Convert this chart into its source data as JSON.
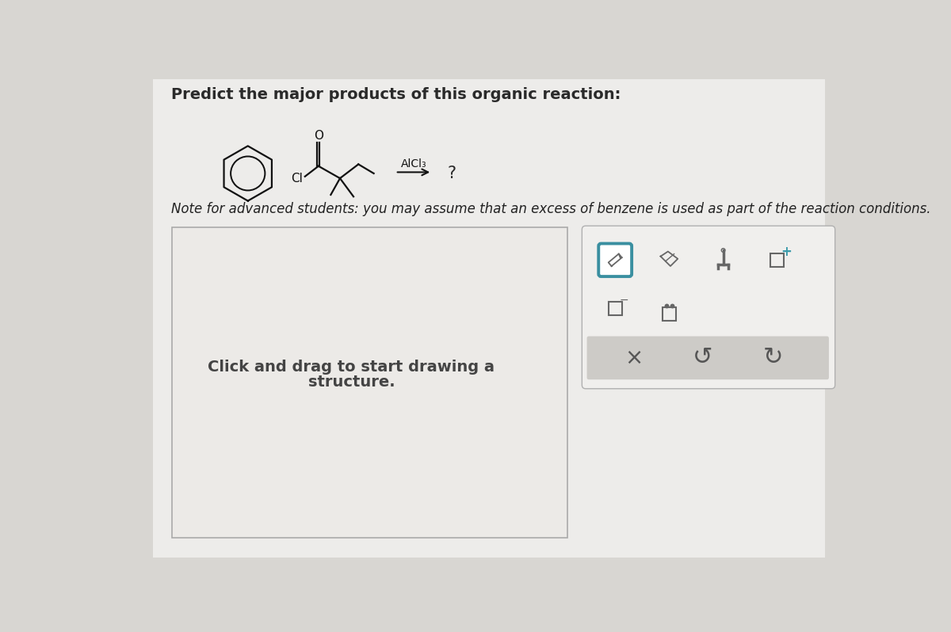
{
  "title": "Predict the major products of this organic reaction:",
  "note": "Note for advanced students: you may assume that an excess of benzene is used as part of the reaction conditions.",
  "reagent": "AlCl₃",
  "question_mark": "?",
  "draw_prompt_line1": "Click and drag to start drawing a",
  "draw_prompt_line2": "structure.",
  "bg_color": "#d8d6d2",
  "paper_color": "#edecea",
  "draw_box_color": "#eceae7",
  "toolbar_bg": "#ebebea",
  "toolbar_border": "#5a9aaa",
  "toolbar_bottom_bg": "#cdcbc7",
  "icon_color": "#555555",
  "text_color": "#2a2a2a",
  "note_color": "#222222",
  "draw_text_color": "#444444",
  "title_fontsize": 14,
  "note_fontsize": 12,
  "draw_prompt_fontsize": 14,
  "mol_color": "#111111",
  "pencil_selected_border": "#3a8fa0"
}
